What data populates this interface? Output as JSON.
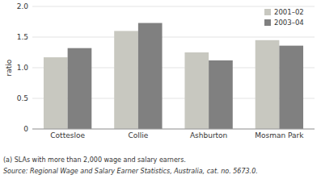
{
  "chart_data": {
    "type": "bar",
    "categories": [
      "Cottesloe",
      "Collie",
      "Ashburton",
      "Mosman Park"
    ],
    "series": [
      {
        "name": "2001–02",
        "color": "#c8c8c0",
        "values": [
          1.17,
          1.6,
          1.25,
          1.45
        ]
      },
      {
        "name": "2003–04",
        "color": "#808080",
        "values": [
          1.32,
          1.73,
          1.12,
          1.36
        ]
      }
    ],
    "y_label": "ratio",
    "ylim": [
      0,
      2.0
    ],
    "yticks": [
      0,
      0.5,
      {
        "value": 1.0,
        "label": "1.0"
      },
      1.5,
      {
        "value": 2.0,
        "label": "2.0"
      }
    ],
    "grid": true,
    "legend": "upper right",
    "annotations": [
      "(a) SLAs with more than 2,000 wage and salary earners.",
      "Source: Regional Wage and Salary Earner Statistics, Australia, cat. no. 5673.0."
    ]
  }
}
